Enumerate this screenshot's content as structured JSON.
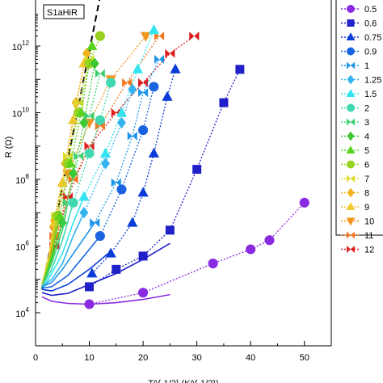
{
  "chart_data": {
    "type": "line",
    "title": "",
    "sample_label": "S1aHiR",
    "xlabel": "T^{-1/2} (K^{-1/2})",
    "ylabel": "R (Ω)",
    "xlim": [
      0,
      55
    ],
    "ylog": true,
    "ylim": [
      3000,
      10000000000000.0
    ],
    "x_ticks": [
      0,
      10,
      20,
      30,
      40,
      50
    ],
    "y_ticks": [
      {
        "value": 10000,
        "base": "10",
        "exp": "4"
      },
      {
        "value": 1000000,
        "base": "10",
        "exp": "6"
      },
      {
        "value": 100000000,
        "base": "10",
        "exp": "8"
      },
      {
        "value": 10000000000,
        "base": "10",
        "exp": "10"
      },
      {
        "value": 1000000000000,
        "base": "10",
        "exp": "12"
      }
    ],
    "reference_line": {
      "style": "dashed",
      "color": "#000000",
      "x": [
        1.2,
        12
      ],
      "y": [
        50000,
        30000000000000.0
      ]
    },
    "legend": {
      "placement": "right",
      "visible_entries_from": "0.5"
    },
    "series": [
      {
        "name": "0.5",
        "color": "#8a2be2",
        "marker": "circle",
        "fit": {
          "x": [
            1.2,
            3,
            6,
            10,
            15,
            20,
            25
          ],
          "y": [
            30000,
            22000,
            19000,
            18000,
            20000,
            25000,
            35000
          ]
        },
        "x": [
          10,
          20,
          33,
          40,
          43.5,
          50
        ],
        "y": [
          18000,
          40000,
          300000,
          800000,
          1500000,
          20000000
        ]
      },
      {
        "name": "0.6",
        "color": "#2020c8",
        "marker": "square",
        "fit": {
          "x": [
            1.2,
            3,
            6,
            10,
            15,
            20,
            25
          ],
          "y": [
            40000,
            33000,
            38000,
            70000,
            150000,
            400000,
            1200000
          ]
        },
        "x": [
          10,
          15,
          20,
          25,
          30,
          35,
          38
        ],
        "y": [
          60000,
          200000,
          500000,
          3000000,
          200000000,
          20000000000,
          200000000000
        ]
      },
      {
        "name": "0.75",
        "color": "#0a3cd7",
        "marker": "triangle",
        "fit": {
          "x": [
            1.2,
            3,
            6,
            10,
            14
          ],
          "y": [
            50000,
            45000,
            70000,
            200000,
            700000
          ]
        },
        "x": [
          10.5,
          14,
          18,
          20,
          22,
          24.5,
          26
        ],
        "y": [
          150000,
          600000,
          5000000,
          40000000,
          600000000,
          30000000000,
          200000000000
        ]
      },
      {
        "name": "0.9",
        "color": "#1a63e0",
        "marker": "circle",
        "fit": {
          "x": [
            1.2,
            3,
            6,
            9,
            12
          ],
          "y": [
            55000,
            60000,
            130000,
            500000,
            2000000
          ]
        },
        "x": [
          12,
          16,
          20,
          22
        ],
        "y": [
          2000000,
          50000000,
          3000000000,
          60000000000
        ]
      },
      {
        "name": "1",
        "color": "#1e96e8",
        "marker": "bowtie",
        "fit": {
          "x": [
            1.2,
            3,
            5,
            8,
            11
          ],
          "y": [
            60000,
            80000,
            200000,
            1000000,
            5000000
          ]
        },
        "x": [
          11,
          15,
          18,
          20,
          23
        ],
        "y": [
          5000000,
          80000000,
          2000000000,
          40000000000,
          400000000000
        ]
      },
      {
        "name": "1.25",
        "color": "#35b3f0",
        "marker": "diamond",
        "fit": {
          "x": [
            1.2,
            3,
            5,
            7,
            9
          ],
          "y": [
            60000,
            100000,
            300000,
            2000000,
            10000000
          ]
        },
        "x": [
          9,
          13,
          16,
          18
        ],
        "y": [
          10000000,
          300000000,
          5000000000,
          50000000000
        ]
      },
      {
        "name": "1.5",
        "color": "#33e4ee",
        "marker": "triangle",
        "fit": {
          "x": [
            1.2,
            3,
            5,
            7,
            9
          ],
          "y": [
            50000,
            150000,
            600000,
            5000000,
            30000000
          ]
        },
        "x": [
          9,
          13,
          16,
          19,
          22
        ],
        "y": [
          30000000,
          600000000,
          10000000000,
          200000000000,
          3000000000000
        ]
      },
      {
        "name": "2",
        "color": "#40d8b0",
        "marker": "circle",
        "fit": {
          "x": [
            1.2,
            3,
            5,
            7
          ],
          "y": [
            60000,
            200000,
            1500000,
            20000000
          ]
        },
        "x": [
          7,
          10,
          12,
          14
        ],
        "y": [
          20000000,
          600000000,
          6000000000,
          80000000000
        ]
      },
      {
        "name": "3",
        "color": "#40d070",
        "marker": "bowtie",
        "fit": {
          "x": [
            1.2,
            3,
            5,
            6
          ],
          "y": [
            60000,
            300000,
            3000000,
            20000000
          ]
        },
        "x": [
          6,
          8,
          10,
          12
        ],
        "y": [
          20000000,
          500000000,
          8000000000,
          150000000000
        ]
      },
      {
        "name": "4",
        "color": "#3cc832",
        "marker": "diamond",
        "fit": {
          "x": [
            1.2,
            3,
            5
          ],
          "y": [
            60000,
            400000,
            5000000
          ]
        },
        "x": [
          5,
          7,
          9,
          11
        ],
        "y": [
          5000000,
          150000000,
          5000000000,
          300000000000
        ]
      },
      {
        "name": "5",
        "color": "#5ad21e",
        "marker": "triangle",
        "fit": {
          "x": [
            1.2,
            3,
            4.5
          ],
          "y": [
            60000,
            500000,
            8000000
          ]
        },
        "x": [
          4.5,
          6.5,
          8.5,
          10.5
        ],
        "y": [
          8000000,
          300000000,
          10000000000,
          1000000000000
        ]
      },
      {
        "name": "6",
        "color": "#96d21e",
        "marker": "circle",
        "fit": {
          "x": [
            1.2,
            3,
            4
          ],
          "y": [
            60000,
            600000,
            8000000
          ]
        },
        "x": [
          4,
          6,
          8,
          10,
          12
        ],
        "y": [
          8000000,
          300000000,
          10000000000,
          300000000000,
          2000000000000
        ]
      },
      {
        "name": "7",
        "color": "#dcdc2a",
        "marker": "bowtie",
        "fit": {
          "x": [
            1.2,
            2.5,
            3.8
          ],
          "y": [
            60000,
            500000,
            8000000
          ]
        },
        "x": [
          3.8,
          6,
          8,
          10
        ],
        "y": [
          8000000,
          500000000,
          20000000000,
          400000000000
        ]
      },
      {
        "name": "8",
        "color": "#f0b41e",
        "marker": "diamond",
        "fit": {
          "x": [
            1.2,
            2.5,
            3.5
          ],
          "y": [
            60000,
            500000,
            6000000
          ]
        },
        "x": [
          3.5,
          5.5,
          7.5,
          9.5
        ],
        "y": [
          6000000,
          300000000,
          20000000000,
          600000000000
        ]
      },
      {
        "name": "9",
        "color": "#f0c832",
        "marker": "triangle",
        "fit": {
          "x": [
            1.2,
            2.5,
            3.5
          ],
          "y": [
            70000,
            500000,
            5000000
          ]
        },
        "x": [
          3.5,
          5,
          7,
          9
        ],
        "y": [
          5000000,
          80000000,
          6000000000,
          300000000000
        ]
      },
      {
        "name": "10",
        "color": "#f0961e",
        "marker": "triangle-down",
        "fit": {
          "x": [
            1.2,
            2.5,
            3.5
          ],
          "y": [
            70000,
            400000,
            3000000
          ]
        },
        "x": [
          3.5,
          6,
          10,
          14,
          20.5
        ],
        "y": [
          3000000,
          150000000,
          5000000000,
          100000000000,
          2000000000000
        ]
      },
      {
        "name": "11",
        "color": "#f07820",
        "marker": "bowtie",
        "fit": {
          "x": [
            1.2,
            2.5,
            3.5
          ],
          "y": [
            70000,
            300000,
            2000000
          ]
        },
        "x": [
          3.5,
          7,
          12,
          17,
          23
        ],
        "y": [
          2000000,
          100000000,
          4000000000,
          80000000000,
          2000000000000
        ]
      },
      {
        "name": "12",
        "color": "#dc1e1e",
        "marker": "bowtie",
        "fit": {
          "x": [
            1.2,
            2.5,
            3.5
          ],
          "y": [
            60000,
            250000,
            1000000
          ]
        },
        "x": [
          3.5,
          6,
          10,
          15,
          20,
          25,
          29.5
        ],
        "y": [
          1000000,
          30000000,
          1000000000,
          10000000000,
          80000000000,
          600000000000,
          2000000000000
        ]
      }
    ]
  }
}
